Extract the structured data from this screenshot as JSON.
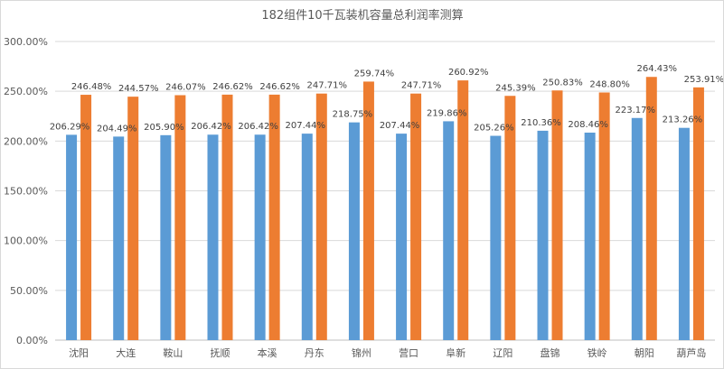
{
  "chart_data": {
    "type": "bar",
    "title": "182组件10千瓦装机容量总利润率测算",
    "categories": [
      "沈阳",
      "大连",
      "鞍山",
      "抚顺",
      "本溪",
      "丹东",
      "锦州",
      "营口",
      "阜新",
      "辽阳",
      "盘锦",
      "铁岭",
      "朝阳",
      "葫芦岛"
    ],
    "series": [
      {
        "values": [
          206.29,
          204.49,
          205.9,
          206.42,
          206.42,
          207.44,
          218.75,
          207.44,
          219.86,
          205.26,
          210.36,
          208.46,
          223.17,
          213.26
        ],
        "labels": [
          "206.29%",
          "204.49%",
          "205.90%",
          "206.42%",
          "206.42%",
          "207.44%",
          "218.75%",
          "207.44%",
          "219.86%",
          "205.26%",
          "210.36%",
          "208.46%",
          "223.17%",
          "213.26%"
        ],
        "color": "#5b9bd5"
      },
      {
        "values": [
          246.48,
          244.57,
          246.07,
          246.62,
          246.62,
          247.71,
          259.74,
          247.71,
          260.92,
          245.39,
          250.83,
          248.8,
          264.43,
          253.91
        ],
        "labels": [
          "246.48%",
          "244.57%",
          "246.07%",
          "246.62%",
          "246.62%",
          "247.71%",
          "259.74%",
          "247.71%",
          "260.92%",
          "245.39%",
          "250.83%",
          "248.80%",
          "264.43%",
          "253.91%"
        ],
        "color": "#ed7d31"
      }
    ],
    "y_ticks": [
      "0.00%",
      "50.00%",
      "100.00%",
      "150.00%",
      "200.00%",
      "250.00%",
      "300.00%"
    ],
    "ylim": [
      0,
      300
    ],
    "grid": true,
    "legend": "none"
  }
}
